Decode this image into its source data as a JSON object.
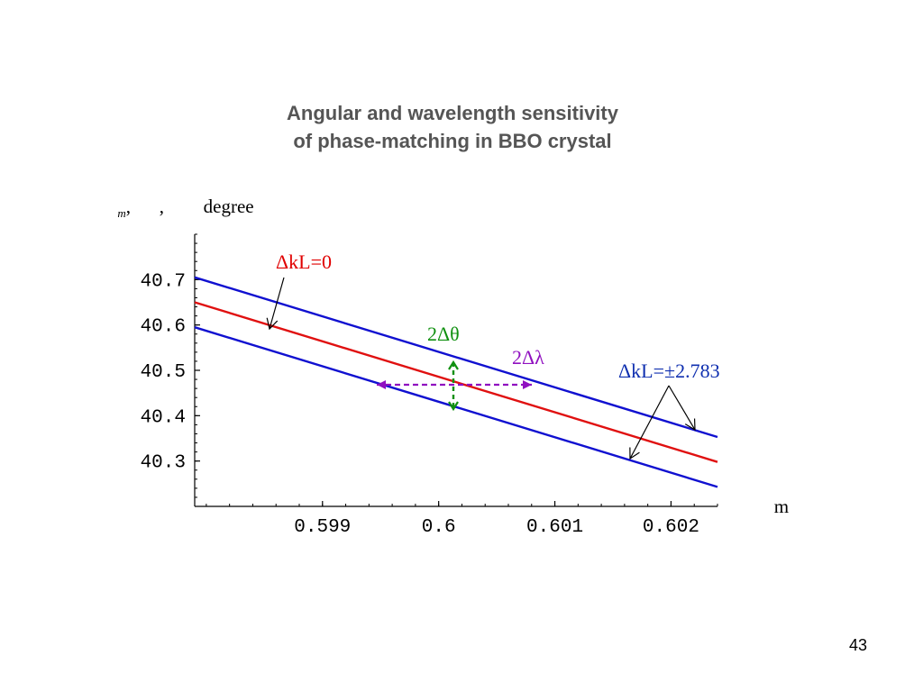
{
  "slide": {
    "title_line1": "Angular and wavelength sensitivity",
    "title_line2": "of phase-matching in BBO crystal",
    "page_number": "43"
  },
  "chart_data": {
    "type": "line",
    "ylabel_symbols": [
      "",
      "",
      ""
    ],
    "ylabel_subscripts": [
      "m",
      "",
      ""
    ],
    "ylabel_unit": "degree",
    "xlabel_symbols": [
      "",
      ""
    ],
    "xlabel_unit": "m",
    "x_ticks": [
      "0.599",
      "0.6",
      "0.601",
      "0.602"
    ],
    "y_ticks": [
      "40.7",
      "40.6",
      "40.5",
      "40.4",
      "40.3"
    ],
    "xlim": [
      0.5979,
      0.6024
    ],
    "ylim": [
      40.2,
      40.8
    ],
    "series": [
      {
        "label": "ΔkL=+2.783",
        "color": "#1010d0",
        "x": [
          0.5979,
          0.6024
        ],
        "y": [
          40.705,
          40.353
        ]
      },
      {
        "label": "ΔkL=0",
        "color": "#e01010",
        "x": [
          0.5979,
          0.6024
        ],
        "y": [
          40.65,
          40.298
        ]
      },
      {
        "label": "ΔkL=−2.783",
        "color": "#1010d0",
        "x": [
          0.5979,
          0.6024
        ],
        "y": [
          40.595,
          40.243
        ]
      }
    ],
    "annotations": {
      "dkl0": "ΔkL=0",
      "dkl_pm": "ΔkL=±2.783",
      "dtheta": "2Δθ",
      "dlambda": "2Δλ"
    },
    "colors": {
      "blue": "#1010d0",
      "red": "#e01010",
      "green": "#109010",
      "purple": "#9010c0",
      "label_red": "#e00000",
      "label_blue": "#1030b0"
    }
  }
}
